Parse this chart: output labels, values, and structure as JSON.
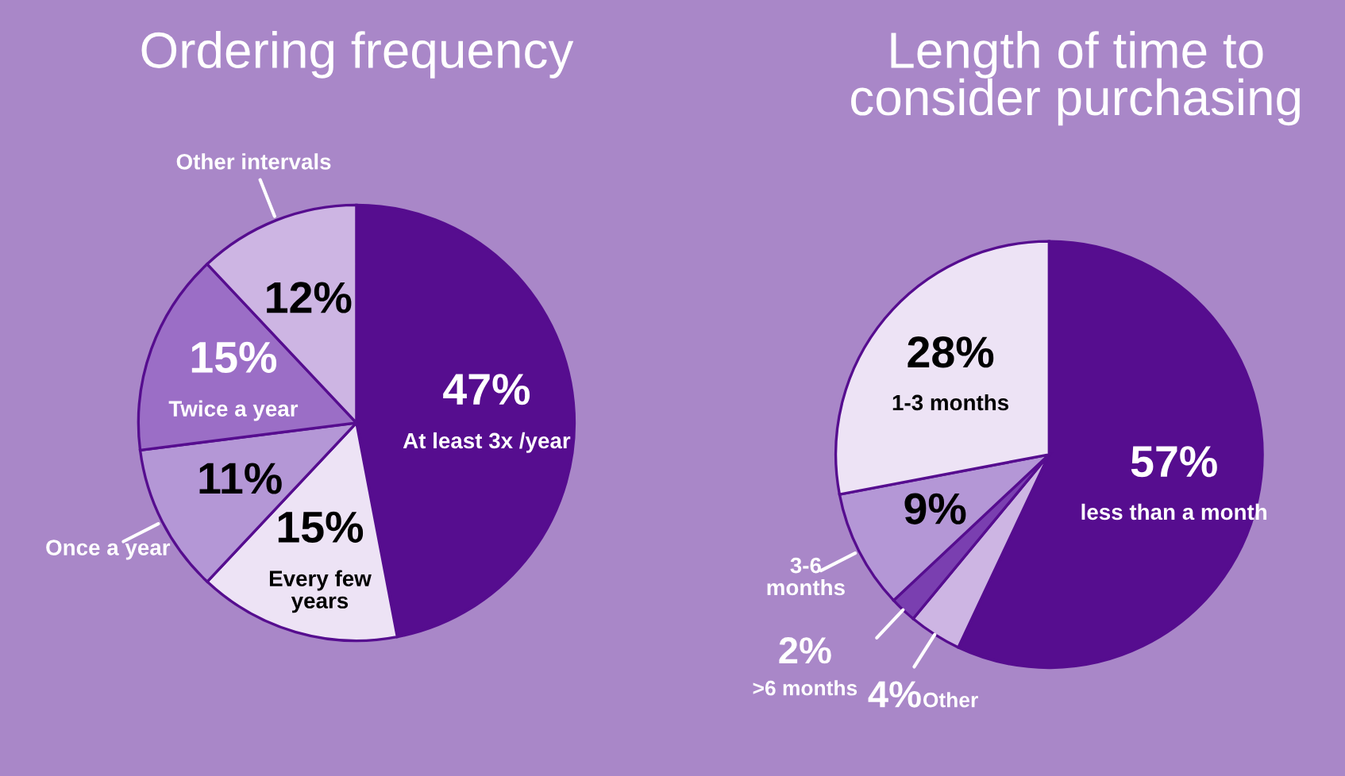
{
  "chart_data": [
    {
      "type": "pie",
      "title": "Ordering frequency",
      "categories": [
        "At least 3x /year",
        "Every few\nyears",
        "Once a year",
        "Twice a year",
        "Other intervals"
      ],
      "values": [
        47,
        15,
        11,
        15,
        12
      ],
      "value_labels": [
        "47%",
        "15%",
        "11%",
        "15%",
        "12%"
      ],
      "colors": [
        "#560d8f",
        "#ede3f5",
        "#b497d6",
        "#9b6ec6",
        "#cdb5e3"
      ]
    },
    {
      "type": "pie",
      "title": "Length of time to\nconsider purchasing",
      "categories": [
        "less than a month",
        "Other",
        ">6 months",
        "3-6\nmonths",
        "1-3 months"
      ],
      "values": [
        57,
        4,
        2,
        9,
        28
      ],
      "value_labels": [
        "57%",
        "4%",
        "2%",
        "9%",
        "28%"
      ],
      "colors": [
        "#560d8f",
        "#cdb5e3",
        "#7a3fb0",
        "#b497d6",
        "#ede3f5"
      ]
    }
  ]
}
